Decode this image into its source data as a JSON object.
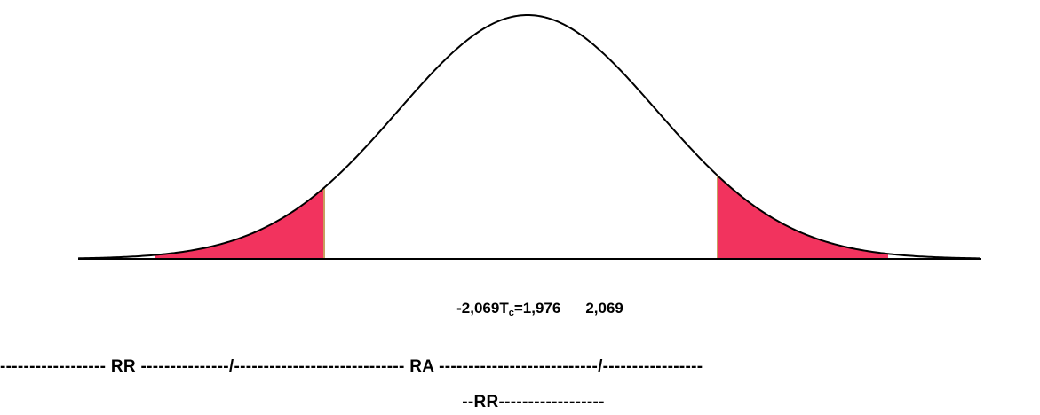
{
  "colors": {
    "tail_fill": "#f2335e",
    "curve_stroke": "#000000",
    "axis_stroke": "#000000"
  },
  "values": {
    "left_critical": "-2,069",
    "t_symbol": "T",
    "t_subscript": "c",
    "t_value": "=1,976",
    "right_critical": "2,069"
  },
  "regions": {
    "line1": "------------------ RR ---------------/----------------------------- RA ---------------------------/-----------------",
    "line2": "--RR------------------"
  }
}
